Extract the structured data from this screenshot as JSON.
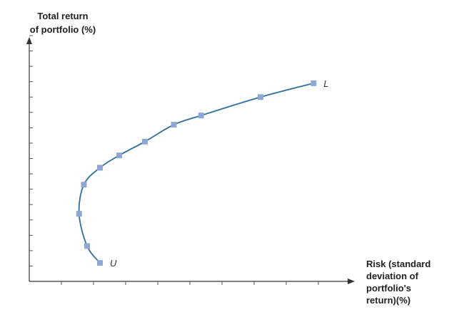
{
  "chart_data": {
    "type": "line",
    "title": "",
    "ylabel": [
      "Total return",
      "of portfolio (%)"
    ],
    "xlabel": [
      "Risk (standard",
      "deviation of",
      "portfolio's",
      "return)(%)"
    ],
    "xlim": [
      0,
      18
    ],
    "ylim": [
      0,
      16
    ],
    "x_tick_count": 9,
    "y_tick_count": 16,
    "grid": false,
    "series": [
      {
        "line_color": "#2e6f9e",
        "marker_color": "#8fa8d2",
        "marker": "square",
        "x": [
          4.4,
          3.6,
          3.1,
          3.4,
          4.4,
          5.6,
          7.2,
          9.0,
          10.7,
          14.4,
          17.7
        ],
        "y": [
          1.2,
          2.3,
          4.4,
          6.3,
          7.4,
          8.2,
          9.1,
          10.2,
          10.8,
          12.0,
          12.9
        ]
      }
    ],
    "point_labels": [
      {
        "text": "U",
        "point": 0
      },
      {
        "text": "L",
        "point": 10
      }
    ]
  }
}
